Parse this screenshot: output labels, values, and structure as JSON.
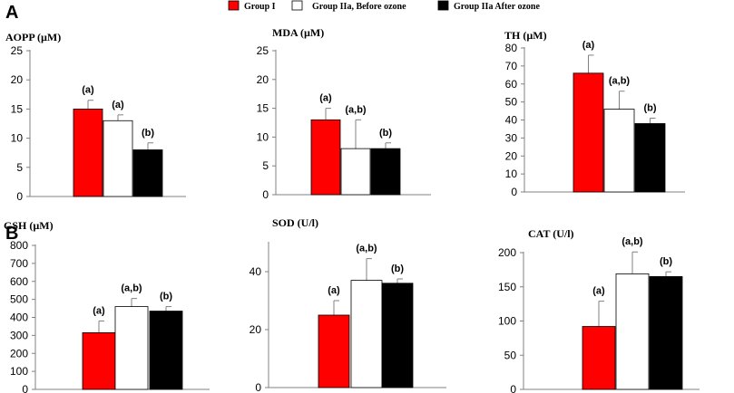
{
  "panels": [
    "A",
    "B"
  ],
  "legend": [
    {
      "label": "Group  I",
      "color": "#ff0000"
    },
    {
      "label": "Group  IIa,  Before ozone",
      "color": "#ffffff"
    },
    {
      "label": "Group  IIa After ozone",
      "color": "#000000"
    }
  ],
  "chart_data": [
    {
      "type": "bar",
      "title": "AOPP (µM)",
      "categories": [
        "Group  I",
        "Group  IIa,  Before ozone",
        "Group  IIa After ozone"
      ],
      "values": [
        15,
        13,
        8
      ],
      "errors": [
        1.5,
        1,
        1.2
      ],
      "labels": [
        "(a)",
        "(a)",
        "(b)"
      ],
      "ylim": [
        0,
        25
      ],
      "ticks": [
        0,
        5,
        10,
        15,
        20,
        25
      ],
      "xlabel": "",
      "ylabel": ""
    },
    {
      "type": "bar",
      "title": "MDA (µM)",
      "categories": [
        "Group  I",
        "Group  IIa,  Before ozone",
        "Group  IIa After ozone"
      ],
      "values": [
        13,
        8,
        8
      ],
      "errors": [
        2,
        5,
        1
      ],
      "labels": [
        "(a)",
        "(a,b)",
        "(b)"
      ],
      "ylim": [
        0,
        25
      ],
      "ticks": [
        0,
        5,
        10,
        15,
        20,
        25
      ],
      "xlabel": "",
      "ylabel": ""
    },
    {
      "type": "bar",
      "title": "TH (µM)",
      "categories": [
        "Group  I",
        "Group  IIa,  Before ozone",
        "Group  IIa After ozone"
      ],
      "values": [
        66,
        46,
        38
      ],
      "errors": [
        10,
        10,
        3
      ],
      "labels": [
        "(a)",
        "(a,b)",
        "(b)"
      ],
      "ylim": [
        0,
        80
      ],
      "ticks": [
        0,
        10,
        20,
        30,
        40,
        50,
        60,
        70,
        80
      ],
      "xlabel": "",
      "ylabel": ""
    },
    {
      "type": "bar",
      "title": "GSH  (µM)",
      "categories": [
        "Group  I",
        "Group  IIa,  Before ozone",
        "Group  IIa After ozone"
      ],
      "values": [
        315,
        460,
        435
      ],
      "errors": [
        65,
        45,
        25
      ],
      "labels": [
        "(a)",
        "(a,b)",
        "(b)"
      ],
      "ylim": [
        0,
        800
      ],
      "ticks": [
        0,
        100,
        200,
        300,
        400,
        500,
        600,
        700,
        800
      ],
      "xlabel": "",
      "ylabel": ""
    },
    {
      "type": "bar",
      "title": "SOD (U/l)",
      "categories": [
        "Group  I",
        "Group  IIa,  Before ozone",
        "Group  IIa After ozone"
      ],
      "values": [
        25,
        37,
        36
      ],
      "errors": [
        5,
        7.5,
        1.5
      ],
      "labels": [
        "(a)",
        "(a,b)",
        "(b)"
      ],
      "ylim": [
        0,
        50
      ],
      "ticks": [
        0,
        20,
        40
      ],
      "xlabel": "",
      "ylabel": ""
    },
    {
      "type": "bar",
      "title": "CAT (U/l)",
      "categories": [
        "Group  I",
        "Group  IIa,  Before ozone",
        "Group  IIa After ozone"
      ],
      "values": [
        92,
        169,
        165
      ],
      "errors": [
        37,
        32,
        7
      ],
      "labels": [
        "(a)",
        "(a,b)",
        "(b)"
      ],
      "ylim": [
        0,
        200
      ],
      "ticks": [
        0,
        50,
        100,
        150,
        200
      ],
      "xlabel": "",
      "ylabel": ""
    }
  ]
}
